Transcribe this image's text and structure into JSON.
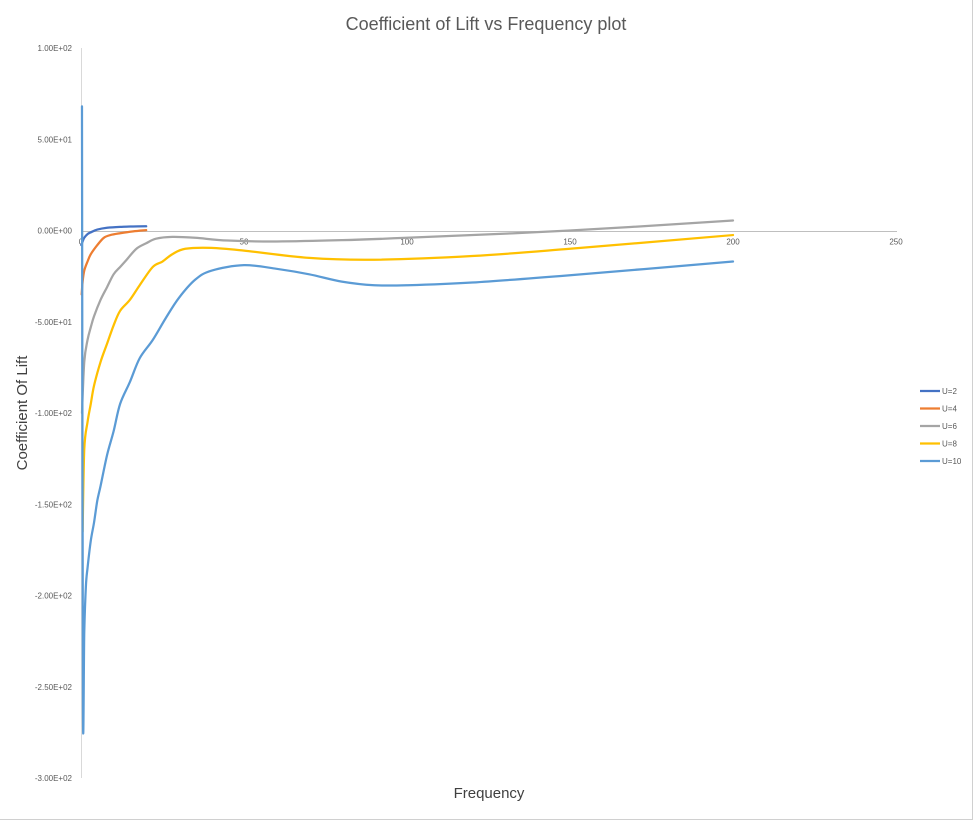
{
  "chart_data": {
    "type": "line",
    "title": "Coefficient of Lift vs Frequency plot",
    "xlabel": "Frequency",
    "ylabel": "Coefficient Of Lift",
    "xlim": [
      0,
      250
    ],
    "ylim": [
      -300,
      100
    ],
    "x_ticks": [
      0,
      50,
      100,
      150,
      200,
      250
    ],
    "x_tick_labels": [
      "0",
      "50",
      "100",
      "150",
      "200",
      "250"
    ],
    "y_ticks": [
      100,
      50,
      0,
      -50,
      -100,
      -150,
      -200,
      -250,
      -300
    ],
    "y_tick_labels": [
      "1.00E+02",
      "5.00E+01",
      "0.00E+00",
      "-5.00E+01",
      "-1.00E+02",
      "-1.50E+02",
      "-2.00E+02",
      "-2.50E+02",
      "-3.00E+02"
    ],
    "grid": false,
    "legend_position": "right",
    "series": [
      {
        "name": "U=2",
        "color": "#4472c4",
        "x": [
          0.1,
          0.5,
          1,
          2,
          3,
          5,
          8,
          12,
          16,
          20
        ],
        "y": [
          -8,
          -6,
          -4,
          -2,
          -1,
          0.5,
          1.5,
          2,
          2.2,
          2.3
        ]
      },
      {
        "name": "U=4",
        "color": "#ed7d31",
        "x": [
          0.2,
          0.5,
          1,
          2,
          3,
          5,
          7,
          9,
          12,
          16,
          20
        ],
        "y": [
          -35,
          -28,
          -22,
          -17,
          -13,
          -8,
          -4,
          -2.5,
          -1.5,
          -0.5,
          0.2
        ]
      },
      {
        "name": "U=6",
        "color": "#a5a5a5",
        "x": [
          0.3,
          1,
          2,
          3,
          4,
          6,
          8,
          10,
          12,
          14,
          17,
          20,
          23,
          28,
          35,
          45,
          60,
          80,
          100,
          150,
          200
        ],
        "y": [
          -100,
          -72,
          -60,
          -53,
          -47,
          -38,
          -31,
          -24,
          -20,
          -16,
          -10,
          -7,
          -4.5,
          -3.5,
          -4,
          -5.5,
          -6,
          -5.3,
          -4,
          0,
          5.5
        ]
      },
      {
        "name": "U=8",
        "color": "#ffc000",
        "x": [
          0.5,
          1,
          2,
          3,
          4,
          6,
          8,
          10,
          12,
          15,
          18,
          22,
          25,
          28,
          32,
          40,
          50,
          70,
          90,
          120,
          150,
          200
        ],
        "y": [
          -165,
          -120,
          -105,
          -95,
          -85,
          -72,
          -62,
          -52,
          -44,
          -38,
          -30,
          -20,
          -17,
          -13,
          -10,
          -9.5,
          -11,
          -15,
          -16,
          -14,
          -10,
          -2.5
        ]
      },
      {
        "name": "U=10",
        "color": "#5b9bd5",
        "x": [
          0.3,
          0.6,
          1,
          1.5,
          2,
          3,
          4,
          5,
          6,
          8,
          10,
          12,
          15,
          18,
          22,
          26,
          30,
          35,
          40,
          50,
          60,
          70,
          80,
          90,
          100,
          120,
          150,
          200
        ],
        "y": [
          68,
          -260,
          -220,
          -195,
          -185,
          -170,
          -160,
          -148,
          -140,
          -123,
          -110,
          -95,
          -83,
          -70,
          -60,
          -48,
          -37,
          -27,
          -22,
          -19,
          -21,
          -24,
          -28,
          -30,
          -30,
          -28.5,
          -24.5,
          -17
        ]
      }
    ]
  }
}
